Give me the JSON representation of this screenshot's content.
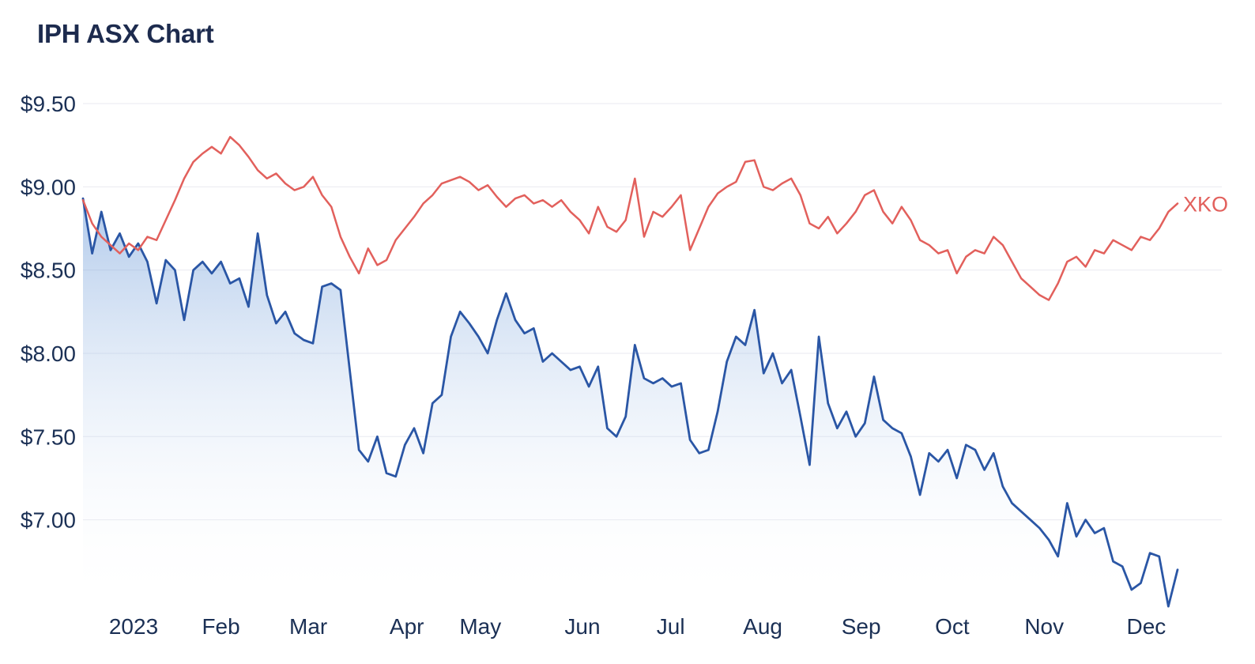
{
  "header": {
    "title": "IPH ASX Chart"
  },
  "chart_data": {
    "type": "line",
    "title": "IPH ASX Chart",
    "xlabel": "",
    "ylabel": "",
    "grid": "horizontal",
    "legend": "end-of-line label for XKO series; IPH series identified by chart title",
    "ylim": [
      6.49,
      9.6
    ],
    "y_ticks": [
      {
        "label": "$9.50",
        "value": 9.5
      },
      {
        "label": "$9.00",
        "value": 9.0
      },
      {
        "label": "$8.50",
        "value": 8.5
      },
      {
        "label": "$8.00",
        "value": 8.0
      },
      {
        "label": "$7.50",
        "value": 7.5
      },
      {
        "label": "$7.00",
        "value": 7.0
      }
    ],
    "x_ticks": [
      {
        "label": "2023",
        "i": 5.5
      },
      {
        "label": "Feb",
        "i": 15
      },
      {
        "label": "Mar",
        "i": 24.5
      },
      {
        "label": "Apr",
        "i": 35.2
      },
      {
        "label": "May",
        "i": 43.2
      },
      {
        "label": "Jun",
        "i": 54.3
      },
      {
        "label": "Jul",
        "i": 63.9
      },
      {
        "label": "Aug",
        "i": 73.9
      },
      {
        "label": "Sep",
        "i": 84.6
      },
      {
        "label": "Oct",
        "i": 94.5
      },
      {
        "label": "Nov",
        "i": 104.5
      },
      {
        "label": "Dec",
        "i": 115.6
      }
    ],
    "colors": {
      "iph_line": "#2a56a5",
      "iph_fill_top": "#5b8fd4",
      "xko_line": "#e2605c",
      "grid": "#e9eaf0",
      "axis_text": "#1b3055",
      "title_text": "#1d2b4e"
    },
    "series": [
      {
        "name": "IPH",
        "style": "area-line",
        "end_label": "",
        "values": [
          8.93,
          8.6,
          8.85,
          8.62,
          8.72,
          8.58,
          8.66,
          8.55,
          8.3,
          8.56,
          8.5,
          8.2,
          8.5,
          8.55,
          8.48,
          8.55,
          8.42,
          8.45,
          8.28,
          8.72,
          8.35,
          8.18,
          8.25,
          8.12,
          8.08,
          8.06,
          8.4,
          8.42,
          8.38,
          7.9,
          7.42,
          7.35,
          7.5,
          7.28,
          7.26,
          7.45,
          7.55,
          7.4,
          7.7,
          7.75,
          8.1,
          8.25,
          8.18,
          8.1,
          8.0,
          8.2,
          8.36,
          8.2,
          8.12,
          8.15,
          7.95,
          8.0,
          7.95,
          7.9,
          7.92,
          7.8,
          7.92,
          7.55,
          7.5,
          7.62,
          8.05,
          7.85,
          7.82,
          7.85,
          7.8,
          7.82,
          7.48,
          7.4,
          7.42,
          7.65,
          7.95,
          8.1,
          8.05,
          8.26,
          7.88,
          8.0,
          7.82,
          7.9,
          7.62,
          7.33,
          8.1,
          7.7,
          7.55,
          7.65,
          7.5,
          7.58,
          7.86,
          7.6,
          7.55,
          7.52,
          7.38,
          7.15,
          7.4,
          7.35,
          7.42,
          7.25,
          7.45,
          7.42,
          7.3,
          7.4,
          7.2,
          7.1,
          7.05,
          7.0,
          6.95,
          6.88,
          6.78,
          7.1,
          6.9,
          7.0,
          6.92,
          6.95,
          6.75,
          6.72,
          6.58,
          6.62,
          6.8,
          6.78,
          6.48,
          6.7
        ]
      },
      {
        "name": "XKO",
        "style": "line",
        "end_label": "XKO",
        "values": [
          8.92,
          8.78,
          8.7,
          8.65,
          8.6,
          8.66,
          8.62,
          8.7,
          8.68,
          8.8,
          8.92,
          9.05,
          9.15,
          9.2,
          9.24,
          9.2,
          9.3,
          9.25,
          9.18,
          9.1,
          9.05,
          9.08,
          9.02,
          8.98,
          9.0,
          9.06,
          8.95,
          8.88,
          8.7,
          8.58,
          8.48,
          8.63,
          8.53,
          8.56,
          8.68,
          8.75,
          8.82,
          8.9,
          8.95,
          9.02,
          9.04,
          9.06,
          9.03,
          8.98,
          9.01,
          8.94,
          8.88,
          8.93,
          8.95,
          8.9,
          8.92,
          8.88,
          8.92,
          8.85,
          8.8,
          8.72,
          8.88,
          8.76,
          8.73,
          8.8,
          9.05,
          8.7,
          8.85,
          8.82,
          8.88,
          8.95,
          8.62,
          8.75,
          8.88,
          8.96,
          9.0,
          9.03,
          9.15,
          9.16,
          9.0,
          8.98,
          9.02,
          9.05,
          8.95,
          8.78,
          8.75,
          8.82,
          8.72,
          8.78,
          8.85,
          8.95,
          8.98,
          8.85,
          8.78,
          8.88,
          8.8,
          8.68,
          8.65,
          8.6,
          8.62,
          8.48,
          8.58,
          8.62,
          8.6,
          8.7,
          8.65,
          8.55,
          8.45,
          8.4,
          8.35,
          8.32,
          8.42,
          8.55,
          8.58,
          8.52,
          8.62,
          8.6,
          8.68,
          8.65,
          8.62,
          8.7,
          8.68,
          8.75,
          8.85,
          8.9
        ]
      }
    ]
  }
}
